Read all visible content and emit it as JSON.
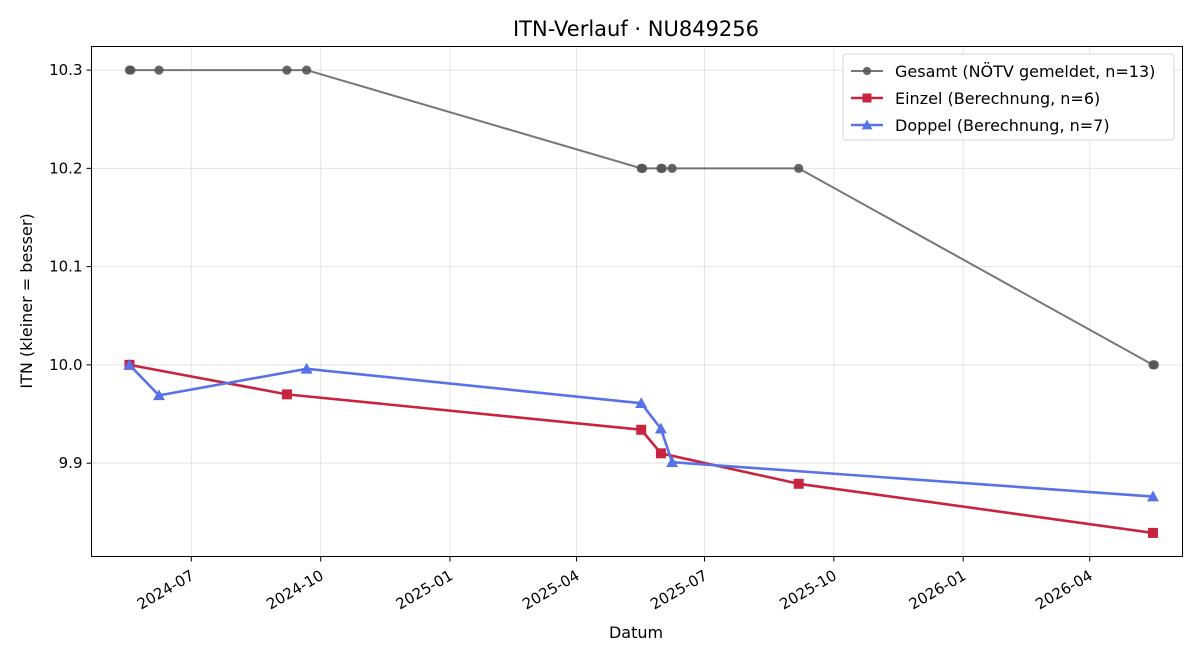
{
  "chart_data": {
    "type": "line",
    "title": "ITN-Verlauf · NU849256",
    "xlabel": "Datum",
    "ylabel": "ITN  (kleiner = besser)",
    "xlim": [
      "2024-04-21",
      "2026-06-06"
    ],
    "ylim": [
      9.805,
      10.324
    ],
    "x_ticks": [
      "2024-07",
      "2024-10",
      "2025-01",
      "2025-04",
      "2025-07",
      "2025-10",
      "2026-01",
      "2026-04"
    ],
    "y_ticks": [
      "9.9",
      "10.0",
      "10.1",
      "10.2",
      "10.3"
    ],
    "grid": true,
    "legend_position": "top-right",
    "series": [
      {
        "name": "Gesamt (NÖTV gemeldet, n=13)",
        "color": "#555555",
        "marker": "circle",
        "points": [
          {
            "x": "2024-05-18",
            "y": 10.3
          },
          {
            "x": "2024-05-19",
            "y": 10.3
          },
          {
            "x": "2024-06-08",
            "y": 10.3
          },
          {
            "x": "2024-09-07",
            "y": 10.3
          },
          {
            "x": "2024-09-21",
            "y": 10.3
          },
          {
            "x": "2025-05-17",
            "y": 10.2
          },
          {
            "x": "2025-05-18",
            "y": 10.2
          },
          {
            "x": "2025-05-31",
            "y": 10.2
          },
          {
            "x": "2025-06-01",
            "y": 10.2
          },
          {
            "x": "2025-06-08",
            "y": 10.2
          },
          {
            "x": "2025-09-06",
            "y": 10.2
          },
          {
            "x": "2026-05-16",
            "y": 10.0
          },
          {
            "x": "2026-05-17",
            "y": 10.0
          }
        ]
      },
      {
        "name": "Einzel (Berechnung, n=6)",
        "color": "#c8233f",
        "marker": "square",
        "points": [
          {
            "x": "2024-05-18",
            "y": 10.0
          },
          {
            "x": "2024-09-07",
            "y": 9.97
          },
          {
            "x": "2025-05-17",
            "y": 9.934
          },
          {
            "x": "2025-05-31",
            "y": 9.91
          },
          {
            "x": "2025-09-06",
            "y": 9.879
          },
          {
            "x": "2026-05-16",
            "y": 9.829
          }
        ]
      },
      {
        "name": "Doppel (Berechnung, n=7)",
        "color": "#5872e8",
        "marker": "triangle",
        "points": [
          {
            "x": "2024-05-18",
            "y": 10.0
          },
          {
            "x": "2024-06-08",
            "y": 9.969
          },
          {
            "x": "2024-09-21",
            "y": 9.996
          },
          {
            "x": "2025-05-17",
            "y": 9.961
          },
          {
            "x": "2025-05-31",
            "y": 9.935
          },
          {
            "x": "2025-06-08",
            "y": 9.901
          },
          {
            "x": "2026-05-16",
            "y": 9.866
          }
        ]
      }
    ]
  }
}
